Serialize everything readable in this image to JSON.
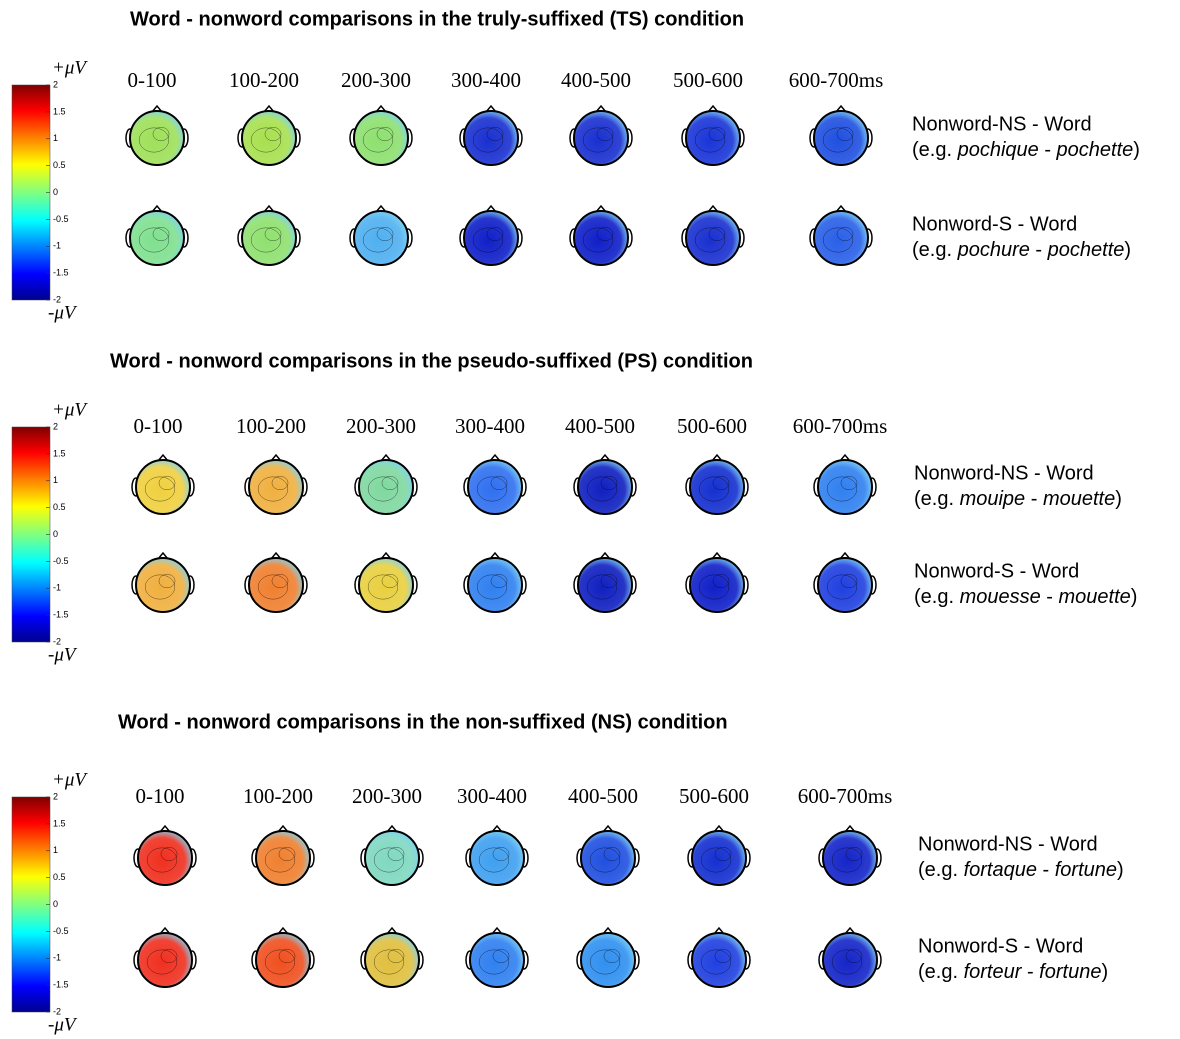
{
  "panels": [
    {
      "title": "Word - nonword comparisons in the truly-suffixed (TS) condition",
      "colorbar": {
        "top_label": "+μV",
        "bottom_label": "-μV",
        "ylim": [
          -2,
          2
        ],
        "yticks": [
          2,
          1.5,
          1,
          0.5,
          0,
          -0.5,
          -1,
          -1.5,
          -2
        ]
      },
      "times": [
        "0-100",
        "100-200",
        "200-300",
        "300-400",
        "400-500",
        "500-600",
        "600-700ms"
      ],
      "rows": [
        {
          "label": "Nonword-NS - Word",
          "example": [
            "(e.g. ",
            "pochique",
            " - ",
            "pochette",
            ")"
          ],
          "map_colors": [
            "#9fe05a",
            "#a8e050",
            "#8ee070",
            "#1a30d0",
            "#1a30d0",
            "#1a35d8",
            "#2050e0"
          ]
        },
        {
          "label": "Nonword-S - Word",
          "example": [
            "(e.g. ",
            "pochure",
            " - ",
            "pochette",
            ")"
          ],
          "map_colors": [
            "#80e090",
            "#90e070",
            "#50b0f0",
            "#1020c8",
            "#1020c8",
            "#1a30d0",
            "#2a60e8"
          ]
        }
      ]
    },
    {
      "title": "Word - nonword comparisons in the pseudo-suffixed (PS) condition",
      "colorbar": {
        "top_label": "+μV",
        "bottom_label": "-μV",
        "ylim": [
          -2,
          2
        ],
        "yticks": [
          2,
          1.5,
          1,
          0.5,
          0,
          -0.5,
          -1,
          -1.5,
          -2
        ]
      },
      "times": [
        "0-100",
        "100-200",
        "200-300",
        "300-400",
        "400-500",
        "500-600",
        "600-700ms"
      ],
      "rows": [
        {
          "label": "Nonword-NS - Word",
          "example": [
            "(e.g. ",
            "mouipe",
            " - ",
            "mouette",
            ")"
          ],
          "map_colors": [
            "#f0d040",
            "#f0b040",
            "#80d8a0",
            "#3070f0",
            "#1020c0",
            "#1530d0",
            "#3080f0"
          ]
        },
        {
          "label": "Nonword-S - Word",
          "example": [
            "(e.g. ",
            "mouesse",
            " - ",
            "mouette",
            ")"
          ],
          "map_colors": [
            "#f0b040",
            "#f08030",
            "#e8d040",
            "#3080f0",
            "#1020c0",
            "#1020c8",
            "#2040e0"
          ]
        }
      ]
    },
    {
      "title": "Word - nonword comparisons in the non-suffixed (NS) condition",
      "colorbar": {
        "top_label": "+μV",
        "bottom_label": "-μV",
        "ylim": [
          -2,
          2
        ],
        "yticks": [
          2,
          1.5,
          1,
          0.5,
          0,
          -0.5,
          -1,
          -1.5,
          -2
        ]
      },
      "times": [
        "0-100",
        "100-200",
        "200-300",
        "300-400",
        "400-500",
        "500-600",
        "600-700ms"
      ],
      "rows": [
        {
          "label": "Nonword-NS - Word",
          "example": [
            "(e.g. ",
            "fortaque",
            " - ",
            "fortune",
            ")"
          ],
          "map_colors": [
            "#f03020",
            "#f08030",
            "#80d8c0",
            "#40a0f0",
            "#2050e0",
            "#1530d0",
            "#1525c8"
          ]
        },
        {
          "label": "Nonword-S - Word",
          "example": [
            "(e.g. ",
            "forteur",
            " - ",
            "fortune",
            ")"
          ],
          "map_colors": [
            "#f03020",
            "#f05020",
            "#e0c040",
            "#3080f0",
            "#3090f0",
            "#2040e0",
            "#1525c8"
          ]
        }
      ]
    }
  ]
}
